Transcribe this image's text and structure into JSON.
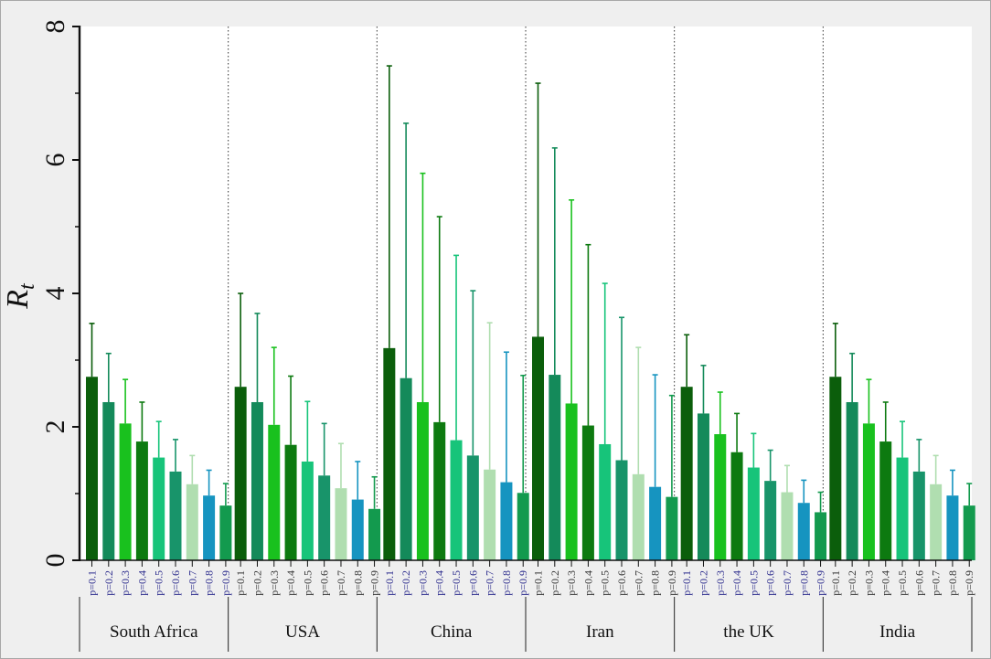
{
  "chart_data": {
    "type": "bar",
    "ylabel_base": "R",
    "ylabel_sub": "t",
    "ylim": [
      0,
      8
    ],
    "yticks": [
      "0",
      "2",
      "4",
      "6",
      "8"
    ],
    "grid": false,
    "categories": [
      "p=0.1",
      "p=0.2",
      "p=0.3",
      "p=0.4",
      "p=0.5",
      "p=0.6",
      "p=0.7",
      "p=0.8",
      "p=0.9"
    ],
    "bar_colors": [
      "#0b5e0b",
      "#148a5a",
      "#19c11e",
      "#0d7a10",
      "#17c47a",
      "#18946a",
      "#b0deb0",
      "#1694c0",
      "#139a4e"
    ],
    "label_colors": {
      "blue": "#2a2a8c",
      "black": "#333333"
    },
    "groups": [
      {
        "name": "South Africa",
        "label_color": "blue",
        "values": [
          2.75,
          2.37,
          2.05,
          1.78,
          1.54,
          1.33,
          1.14,
          0.97,
          0.82
        ],
        "upper": [
          3.55,
          3.1,
          2.71,
          2.37,
          2.08,
          1.81,
          1.57,
          1.35,
          1.15
        ]
      },
      {
        "name": "USA",
        "label_color": "black",
        "values": [
          2.6,
          2.37,
          2.03,
          1.73,
          1.48,
          1.27,
          1.08,
          0.91,
          0.77
        ],
        "upper": [
          4.0,
          3.7,
          3.19,
          2.76,
          2.38,
          2.05,
          1.75,
          1.48,
          1.25
        ]
      },
      {
        "name": "China",
        "label_color": "blue",
        "values": [
          3.18,
          2.73,
          2.37,
          2.07,
          1.8,
          1.57,
          1.36,
          1.17,
          1.01
        ],
        "upper": [
          7.41,
          6.55,
          5.8,
          5.15,
          4.57,
          4.04,
          3.56,
          3.12,
          2.77
        ]
      },
      {
        "name": "Iran",
        "label_color": "black",
        "values": [
          3.35,
          2.78,
          2.35,
          2.02,
          1.74,
          1.5,
          1.29,
          1.1,
          0.95
        ],
        "upper": [
          7.15,
          6.18,
          5.4,
          4.73,
          4.15,
          3.64,
          3.19,
          2.78,
          2.47
        ]
      },
      {
        "name": "the UK",
        "label_color": "blue",
        "values": [
          2.6,
          2.2,
          1.89,
          1.62,
          1.39,
          1.19,
          1.02,
          0.86,
          0.72
        ],
        "upper": [
          3.38,
          2.92,
          2.52,
          2.2,
          1.9,
          1.65,
          1.42,
          1.2,
          1.02
        ]
      },
      {
        "name": "India",
        "label_color": "black",
        "values": [
          2.75,
          2.37,
          2.05,
          1.78,
          1.54,
          1.33,
          1.14,
          0.97,
          0.82
        ],
        "upper": [
          3.55,
          3.1,
          2.71,
          2.37,
          2.08,
          1.81,
          1.57,
          1.35,
          1.15
        ]
      }
    ]
  }
}
